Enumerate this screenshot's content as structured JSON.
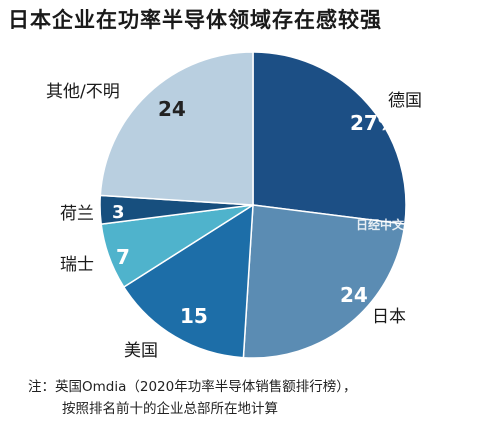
{
  "title": "日本企业在功率半导体领域存在感较强",
  "watermark": "日经中文网",
  "note": {
    "line1": "注：英国Omdia（2020年功率半导体销售额排行榜），",
    "line2": "按照排名前十的企业总部所在地计算"
  },
  "chart_data": {
    "type": "pie",
    "slices": [
      {
        "label": "德国",
        "value": 27,
        "value_label": "27%",
        "color": "#1c4f85"
      },
      {
        "label": "日本",
        "value": 24,
        "value_label": "24",
        "color": "#5b8cb3"
      },
      {
        "label": "美国",
        "value": 15,
        "value_label": "15",
        "color": "#1d6ea8"
      },
      {
        "label": "瑞士",
        "value": 7,
        "value_label": "7",
        "color": "#4fb3cc"
      },
      {
        "label": "荷兰",
        "value": 3,
        "value_label": "3",
        "color": "#174f7e"
      },
      {
        "label": "其他/不明",
        "value": 24,
        "value_label": "24",
        "color": "#b9cfe0"
      }
    ],
    "start_angle": "12 o'clock",
    "direction": "clockwise"
  }
}
